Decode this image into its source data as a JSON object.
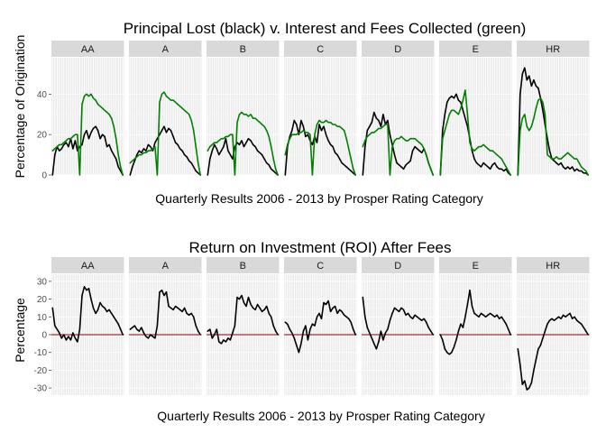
{
  "chart_data": [
    {
      "type": "line",
      "title": "Principal Lost (black) v. Interest and Fees Collected (green)",
      "xlabel": "Quarterly Results 2006 - 2013 by Prosper Rating Category",
      "ylabel": "Percentage of Origination",
      "ylim": [
        0,
        58
      ],
      "yticks": [
        0,
        20,
        40
      ],
      "panels": [
        "AA",
        "A",
        "B",
        "C",
        "D",
        "E",
        "HR"
      ],
      "series": [
        {
          "name": "Principal Lost",
          "color": "#000000",
          "values": [
            [
              0,
              10,
              14,
              12,
              13,
              15,
              16,
              14,
              18,
              13,
              17,
              12,
              14,
              15,
              20,
              22,
              18,
              21,
              23,
              24,
              22,
              18,
              20,
              19,
              14,
              15,
              12,
              10,
              8,
              4,
              2,
              0
            ],
            [
              0,
              4,
              7,
              10,
              12,
              11,
              13,
              12,
              15,
              14,
              12,
              16,
              18,
              20,
              22,
              24,
              21,
              23,
              22,
              19,
              16,
              15,
              13,
              12,
              10,
              9,
              7,
              6,
              4,
              2,
              1,
              0
            ],
            [
              0,
              8,
              12,
              15,
              13,
              10,
              12,
              14,
              18,
              12,
              10,
              8,
              14,
              16,
              15,
              17,
              14,
              16,
              18,
              17,
              15,
              14,
              12,
              11,
              10,
              8,
              6,
              5,
              3,
              2,
              1,
              0
            ],
            [
              0,
              14,
              19,
              22,
              27,
              25,
              20,
              27,
              24,
              19,
              20,
              17,
              15,
              19,
              16,
              25,
              22,
              24,
              20,
              17,
              15,
              14,
              11,
              10,
              8,
              6,
              5,
              4,
              3,
              2,
              1,
              0
            ],
            [
              0,
              14,
              22,
              24,
              26,
              31,
              28,
              27,
              24,
              30,
              25,
              27,
              20,
              15,
              10,
              6,
              5,
              4,
              3,
              5,
              6,
              7,
              12,
              14,
              13,
              12,
              11,
              13,
              10,
              6,
              3,
              0
            ],
            [
              0,
              22,
              30,
              36,
              38,
              39,
              38,
              40,
              37,
              36,
              32,
              28,
              24,
              18,
              12,
              8,
              6,
              5,
              4,
              6,
              5,
              4,
              3,
              5,
              6,
              4,
              3,
              3,
              2,
              3,
              1,
              0
            ],
            [
              0,
              40,
              50,
              53,
              47,
              49,
              44,
              47,
              44,
              43,
              38,
              32,
              25,
              18,
              12,
              8,
              7,
              6,
              5,
              6,
              4,
              3,
              4,
              3,
              4,
              2,
              3,
              2,
              2,
              1,
              1,
              0
            ]
          ]
        },
        {
          "name": "Interest and Fees Collected",
          "color": "#008000",
          "values": [
            [
              12,
              13,
              14,
              15,
              15,
              16,
              17,
              18,
              18,
              19,
              20,
              20,
              0,
              35,
              39,
              40,
              39,
              40,
              38,
              37,
              35,
              34,
              33,
              32,
              31,
              30,
              28,
              24,
              18,
              10,
              4,
              0
            ],
            [
              6,
              7,
              8,
              9,
              10,
              10,
              11,
              11,
              12,
              12,
              13,
              14,
              0,
              36,
              40,
              41,
              39,
              38,
              37,
              37,
              36,
              35,
              34,
              33,
              32,
              31,
              30,
              27,
              22,
              14,
              6,
              0
            ],
            [
              12,
              14,
              15,
              16,
              16,
              17,
              18,
              18,
              19,
              19,
              20,
              20,
              0,
              26,
              30,
              31,
              30,
              30,
              29,
              30,
              28,
              28,
              27,
              26,
              25,
              24,
              22,
              19,
              14,
              8,
              3,
              0
            ],
            [
              10,
              15,
              18,
              20,
              20,
              20,
              21,
              21,
              22,
              21,
              21,
              20,
              0,
              20,
              25,
              27,
              26,
              26,
              27,
              26,
              26,
              25,
              25,
              24,
              24,
              23,
              22,
              18,
              13,
              8,
              3,
              0
            ],
            [
              14,
              17,
              19,
              20,
              21,
              21,
              22,
              23,
              23,
              24,
              25,
              25,
              0,
              14,
              17,
              18,
              18,
              19,
              18,
              17,
              17,
              18,
              18,
              18,
              17,
              16,
              15,
              13,
              10,
              6,
              3,
              0
            ],
            [
              0,
              18,
              22,
              26,
              30,
              32,
              32,
              31,
              30,
              33,
              37,
              42,
              30,
              16,
              13,
              12,
              13,
              14,
              14,
              15,
              14,
              13,
              12,
              12,
              11,
              10,
              9,
              8,
              6,
              4,
              2,
              0
            ],
            [
              0,
              22,
              28,
              30,
              24,
              22,
              24,
              28,
              33,
              37,
              38,
              36,
              30,
              10,
              9,
              8,
              8,
              9,
              8,
              8,
              9,
              10,
              11,
              10,
              9,
              8,
              8,
              6,
              4,
              3,
              2,
              0
            ]
          ]
        }
      ]
    },
    {
      "type": "line",
      "title": "Return on Investment (ROI) After Fees",
      "xlabel": "Quarterly Results 2006 - 2013 by Prosper Rating Category",
      "ylabel": "Percentage",
      "ylim": [
        -34,
        34
      ],
      "yticks": [
        -30,
        -20,
        -10,
        0,
        10,
        20,
        30
      ],
      "panels": [
        "AA",
        "A",
        "B",
        "C",
        "D",
        "E",
        "HR"
      ],
      "reference_line": {
        "y": 0,
        "color": "#8b0000"
      },
      "series": [
        {
          "name": "ROI After Fees",
          "color": "#000000",
          "values": [
            [
              15,
              5,
              3,
              1,
              -2,
              0,
              -3,
              -1,
              -3,
              1,
              -2,
              -4,
              3,
              22,
              27,
              25,
              26,
              20,
              15,
              12,
              14,
              18,
              16,
              15,
              13,
              14,
              12,
              10,
              8,
              6,
              3,
              0
            ],
            [
              3,
              4,
              5,
              3,
              2,
              4,
              1,
              -1,
              -2,
              0,
              -1,
              -2,
              5,
              24,
              25,
              22,
              24,
              16,
              15,
              14,
              16,
              15,
              14,
              13,
              15,
              12,
              11,
              12,
              10,
              5,
              2,
              0
            ],
            [
              2,
              3,
              -2,
              0,
              3,
              -4,
              -5,
              -3,
              -4,
              -2,
              -3,
              1,
              5,
              21,
              20,
              22,
              18,
              16,
              21,
              17,
              15,
              14,
              17,
              15,
              13,
              14,
              16,
              12,
              10,
              5,
              2,
              0
            ],
            [
              7,
              6,
              3,
              1,
              -2,
              -6,
              -10,
              -5,
              2,
              5,
              -3,
              3,
              6,
              5,
              10,
              12,
              9,
              18,
              17,
              19,
              13,
              15,
              16,
              12,
              14,
              13,
              11,
              10,
              9,
              7,
              3,
              0
            ],
            [
              21,
              10,
              4,
              1,
              -2,
              -5,
              -8,
              -4,
              2,
              -3,
              1,
              3,
              8,
              12,
              15,
              14,
              13,
              15,
              14,
              11,
              12,
              10,
              9,
              11,
              10,
              9,
              8,
              9,
              7,
              4,
              2,
              0
            ],
            [
              0,
              -3,
              -8,
              -10,
              -11,
              -10,
              -7,
              -3,
              2,
              6,
              4,
              10,
              17,
              25,
              16,
              12,
              11,
              10,
              12,
              11,
              10,
              11,
              12,
              11,
              10,
              11,
              9,
              10,
              8,
              6,
              3,
              0
            ],
            [
              -8,
              -17,
              -28,
              -26,
              -31,
              -30,
              -27,
              -20,
              -14,
              -8,
              -6,
              -2,
              2,
              6,
              8,
              9,
              8,
              9,
              10,
              9,
              11,
              10,
              11,
              12,
              9,
              10,
              8,
              7,
              6,
              4,
              2,
              0
            ]
          ]
        }
      ]
    }
  ]
}
